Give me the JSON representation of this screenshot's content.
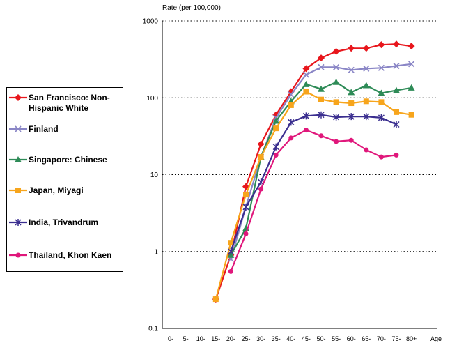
{
  "chart_data": {
    "type": "line",
    "ylabel": "Rate (per 100,000)",
    "xlabel": "Age",
    "yscale": "log",
    "ylim": [
      0.1,
      1000
    ],
    "yticks": [
      "0.1",
      "1",
      "10",
      "100",
      "1000"
    ],
    "categories": [
      "0-",
      "5-",
      "10-",
      "15-",
      "20-",
      "25-",
      "30-",
      "35-",
      "40-",
      "45-",
      "50-",
      "55-",
      "60-",
      "65-",
      "70-",
      "75-",
      "80+"
    ],
    "grid": "horizontal dotted",
    "legend_position": "left",
    "series": [
      {
        "name": "San Francisco: Non-Hispanic White",
        "color": "#e8161c",
        "marker": "diamond",
        "values": [
          null,
          null,
          null,
          0.24,
          0.9,
          7,
          25,
          60,
          120,
          240,
          330,
          400,
          440,
          440,
          490,
          500,
          470
        ]
      },
      {
        "name": "Finland",
        "color": "#8a86c6",
        "marker": "x",
        "values": [
          null,
          null,
          null,
          null,
          0.8,
          3.8,
          17,
          55,
          110,
          200,
          250,
          250,
          230,
          240,
          245,
          260,
          275
        ]
      },
      {
        "name": "Singapore: Chinese",
        "color": "#2e8b57",
        "marker": "triangle",
        "values": [
          null,
          null,
          null,
          null,
          0.9,
          2,
          17,
          50,
          90,
          150,
          130,
          160,
          118,
          145,
          115,
          125,
          135
        ]
      },
      {
        "name": "Japan, Miyagi",
        "color": "#f7a51c",
        "marker": "square",
        "values": [
          null,
          null,
          null,
          0.24,
          1.3,
          5.5,
          17,
          40,
          80,
          120,
          95,
          88,
          85,
          90,
          88,
          65,
          60
        ]
      },
      {
        "name": "India, Trivandrum",
        "color": "#3a2e8f",
        "marker": "star",
        "values": [
          null,
          null,
          null,
          null,
          1,
          3.8,
          8,
          23,
          48,
          58,
          60,
          56,
          57,
          57,
          55,
          45,
          null
        ]
      },
      {
        "name": "Thailand, Khon Kaen",
        "color": "#e0177b",
        "marker": "circle",
        "values": [
          null,
          null,
          null,
          null,
          0.55,
          1.7,
          6.5,
          18,
          30,
          38,
          32,
          27,
          28,
          21,
          17,
          18,
          null
        ]
      }
    ]
  }
}
